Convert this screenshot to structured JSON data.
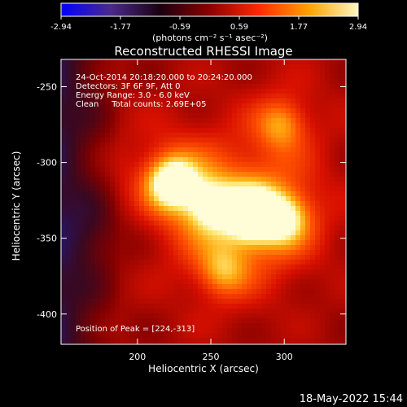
{
  "colorbar": {
    "ticks": [
      "-2.94",
      "-1.77",
      "-0.59",
      "0.59",
      "1.77",
      "2.94"
    ],
    "unit_label": "(photons cm⁻² s⁻¹ asec⁻²)",
    "colors": [
      "#0000ff",
      "#4b2a8c",
      "#1a0010",
      "#8b0000",
      "#ff2a00",
      "#ffa000",
      "#fff9c0"
    ]
  },
  "chart_data": {
    "type": "heatmap",
    "title": "Reconstructed RHESSI Image",
    "xlabel": "Heliocentric X (arcsec)",
    "ylabel": "Heliocentric Y (arcsec)",
    "xlim": [
      148,
      342
    ],
    "ylim": [
      -420,
      -232
    ],
    "xticks": [
      200,
      250,
      300
    ],
    "yticks": [
      -250,
      -300,
      -350,
      -400
    ],
    "annotations": [
      "24-Oct-2014 20:18:20.000 to 20:24:20.000",
      "Detectors: 3F 6F 9F, Att 0",
      "Energy Range: 3.0 - 6.0 keV",
      "Clean     Total counts: 2.69E+05"
    ],
    "peak_label": "Position of Peak = [224,-313]",
    "peak": [
      224,
      -313
    ],
    "sources": [
      {
        "x": 224,
        "y": -313,
        "amp": 1.9
      },
      {
        "x": 278,
        "y": -334,
        "amp": 2.0
      },
      {
        "x": 300,
        "y": -337,
        "amp": 1.3
      },
      {
        "x": 298,
        "y": -275,
        "amp": 1.0
      },
      {
        "x": 258,
        "y": -372,
        "amp": 0.9
      },
      {
        "x": 250,
        "y": -328,
        "amp": 1.2
      }
    ]
  },
  "footer": {
    "date": "18-May-2022 15:44"
  }
}
